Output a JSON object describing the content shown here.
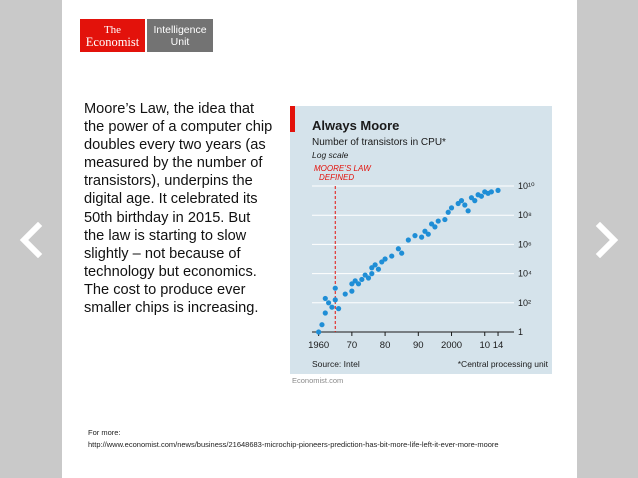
{
  "logo": {
    "brand_line1": "The",
    "brand_line2": "Economist",
    "unit_line1": "Intelligence",
    "unit_line2": "Unit"
  },
  "body_text": "Moore’s Law, the idea that the power of a computer chip doubles every two years (as measured by the number of transistors), underpins the digital age. It celebrated its 50th birthday in 2015. But the law is starting to slow slightly – not because of technology but economics. The cost to produce ever smaller chips is increasing.",
  "chart_data": {
    "type": "scatter",
    "title": "Always Moore",
    "subtitle": "Number of transistors in CPU*",
    "scale_note": "Log scale",
    "annotation_line1": "MOORE’S LAW",
    "annotation_line2": "DEFINED",
    "annotation_x": 1965,
    "x_ticks": [
      "1960",
      "70",
      "80",
      "90",
      "2000",
      "10",
      "14"
    ],
    "x_tick_values": [
      1960,
      1970,
      1980,
      1990,
      2000,
      2010,
      2014
    ],
    "xlim": [
      1958,
      2017
    ],
    "y_ticks": [
      "1",
      "10²",
      "10⁴",
      "10⁶",
      "10⁸",
      "10¹⁰"
    ],
    "y_tick_values": [
      0,
      2,
      4,
      6,
      8,
      10
    ],
    "ylim_log10": [
      0,
      11
    ],
    "grid": true,
    "points_log10": [
      [
        1960,
        0.0
      ],
      [
        1961,
        0.5
      ],
      [
        1962,
        1.3
      ],
      [
        1962,
        2.3
      ],
      [
        1963,
        2.0
      ],
      [
        1964,
        1.7
      ],
      [
        1965,
        2.2
      ],
      [
        1965,
        3.0
      ],
      [
        1966,
        1.6
      ],
      [
        1968,
        2.6
      ],
      [
        1970,
        2.8
      ],
      [
        1970,
        3.3
      ],
      [
        1971,
        3.5
      ],
      [
        1972,
        3.3
      ],
      [
        1973,
        3.6
      ],
      [
        1974,
        3.9
      ],
      [
        1975,
        3.7
      ],
      [
        1976,
        4.0
      ],
      [
        1976,
        4.4
      ],
      [
        1977,
        4.6
      ],
      [
        1978,
        4.3
      ],
      [
        1979,
        4.8
      ],
      [
        1980,
        5.0
      ],
      [
        1982,
        5.2
      ],
      [
        1984,
        5.7
      ],
      [
        1985,
        5.4
      ],
      [
        1987,
        6.3
      ],
      [
        1989,
        6.6
      ],
      [
        1991,
        6.5
      ],
      [
        1992,
        6.9
      ],
      [
        1993,
        6.7
      ],
      [
        1994,
        7.4
      ],
      [
        1995,
        7.2
      ],
      [
        1996,
        7.6
      ],
      [
        1998,
        7.7
      ],
      [
        1999,
        8.2
      ],
      [
        2000,
        8.5
      ],
      [
        2002,
        8.8
      ],
      [
        2003,
        9.0
      ],
      [
        2004,
        8.7
      ],
      [
        2005,
        8.3
      ],
      [
        2006,
        9.2
      ],
      [
        2007,
        9.0
      ],
      [
        2008,
        9.4
      ],
      [
        2009,
        9.3
      ],
      [
        2010,
        9.6
      ],
      [
        2011,
        9.5
      ],
      [
        2012,
        9.6
      ],
      [
        2014,
        9.7
      ]
    ]
  },
  "chart_source": "Source: Intel",
  "chart_note": "*Central processing unit",
  "chart_credit": "Economist.com",
  "more": {
    "label": "For more:",
    "url": "http://www.economist.com/news/business/21648683-microchip-pioneers-prediction-has-bit-more-life-left-it-ever-more-moore"
  },
  "colors": {
    "brand_red": "#e3120b",
    "unit_gray": "#737373",
    "chart_bg": "#d5e3eb",
    "dot_blue": "#1f8ed6",
    "nav_white": "#ffffff"
  },
  "icons": {
    "prev": "chevron-left-icon",
    "next": "chevron-right-icon"
  }
}
